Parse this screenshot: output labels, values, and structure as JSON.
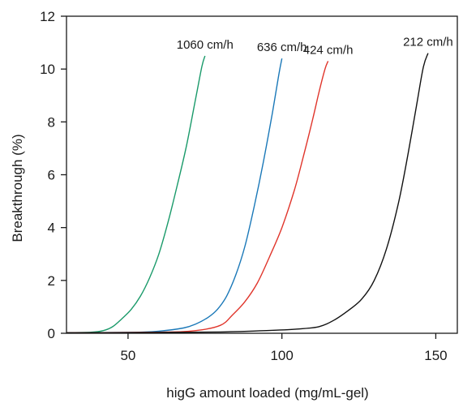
{
  "chart_data": {
    "type": "line",
    "xlabel": "higG amount loaded (mg/mL-gel)",
    "ylabel": "Breakthrough (%)",
    "xlim": [
      30,
      157
    ],
    "ylim": [
      0,
      12
    ],
    "x_ticks": [
      50,
      100,
      150
    ],
    "y_ticks": [
      0,
      2,
      4,
      6,
      8,
      10,
      12
    ],
    "grid": false,
    "legend": "inline labels at curve tops",
    "series": [
      {
        "name": "1060 cm/h",
        "color": "#1a9a6a",
        "x": [
          30,
          38,
          42,
          45,
          48,
          51,
          54,
          57,
          60,
          63,
          66,
          69,
          72,
          74,
          75
        ],
        "y": [
          0.02,
          0.04,
          0.1,
          0.25,
          0.55,
          0.9,
          1.4,
          2.1,
          3.0,
          4.2,
          5.6,
          7.1,
          8.9,
          10.1,
          10.5
        ]
      },
      {
        "name": "636 cm/h",
        "color": "#1a78b8",
        "x": [
          30,
          50,
          60,
          68,
          72,
          76,
          79,
          82,
          85,
          88,
          91,
          94,
          97,
          99,
          100
        ],
        "y": [
          0.02,
          0.03,
          0.08,
          0.2,
          0.35,
          0.6,
          0.9,
          1.4,
          2.2,
          3.3,
          4.8,
          6.5,
          8.4,
          9.8,
          10.4
        ]
      },
      {
        "name": "424 cm/h",
        "color": "#e0352b",
        "x": [
          30,
          60,
          72,
          80,
          84,
          88,
          92,
          96,
          100,
          104,
          107,
          110,
          112,
          114,
          115
        ],
        "y": [
          0.02,
          0.04,
          0.1,
          0.3,
          0.7,
          1.2,
          1.9,
          2.9,
          4.0,
          5.4,
          6.7,
          8.1,
          9.1,
          10.0,
          10.3
        ]
      },
      {
        "name": "212 cm/h",
        "color": "#111111",
        "x": [
          30,
          60,
          80,
          95,
          105,
          112,
          117,
          122,
          126,
          130,
          134,
          138,
          141,
          144,
          146,
          147.5
        ],
        "y": [
          0.02,
          0.03,
          0.05,
          0.1,
          0.16,
          0.25,
          0.5,
          0.9,
          1.3,
          2.0,
          3.2,
          5.0,
          6.8,
          8.8,
          10.1,
          10.6
        ]
      }
    ]
  }
}
